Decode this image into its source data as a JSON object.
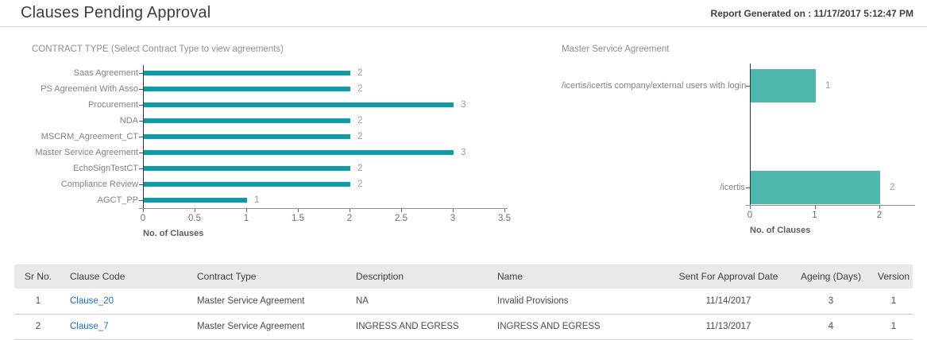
{
  "header": {
    "title": "Clauses Pending Approval",
    "generated": "Report Generated on : 11/17/2017 5:12:47 PM"
  },
  "chart_data": [
    {
      "type": "bar",
      "orientation": "horizontal",
      "title": "CONTRACT TYPE (Select Contract Type to view agreements)",
      "categories": [
        "Saas Agreement",
        "PS Agreement With Asso",
        "Procurement",
        "NDA",
        "MSCRM_Agreement_CT",
        "Master Service Agreement",
        "EchoSignTestCT",
        "Compliance Review",
        "AGCT_PP"
      ],
      "values": [
        2,
        2,
        3,
        2,
        2,
        3,
        2,
        2,
        1
      ],
      "xlabel": "No. of Clauses",
      "xlim": [
        0,
        3.5
      ],
      "xticks": [
        "0",
        "0.5",
        "1",
        "1.5",
        "2",
        "2.5",
        "3",
        "3.5"
      ],
      "bar_color": "#0d9aaa",
      "grid": false,
      "legend": "none"
    },
    {
      "type": "bar",
      "orientation": "horizontal",
      "title": "Master Service Agreement",
      "categories": [
        "/icertis/icertis company/external users with login",
        "/icertis"
      ],
      "values": [
        1,
        2
      ],
      "xlabel": "No. of Clauses",
      "xlim": [
        0,
        2.55
      ],
      "xticks": [
        "0",
        "1",
        "2"
      ],
      "bar_color": "#4db8ab",
      "grid": false,
      "legend": "none"
    }
  ],
  "table": {
    "columns": [
      "Sr No.",
      "Clause Code",
      "Contract Type",
      "Description",
      "Name",
      "Sent For Approval Date",
      "Ageing  (Days)",
      "Version"
    ],
    "rows": [
      [
        "1",
        "Clause_20",
        "Master Service Agreement",
        "NA",
        "Invalid Provisions",
        "11/14/2017",
        "3",
        "1"
      ],
      [
        "2",
        "Clause_7",
        "Master Service Agreement",
        "INGRESS AND EGRESS",
        "INGRESS AND EGRESS",
        "11/13/2017",
        "4",
        "1"
      ]
    ],
    "link_column_index": 1
  },
  "colors": {
    "left_bar": "#0d9aaa",
    "right_bar": "#4db8ab",
    "link": "#2270b8",
    "table_header_bg": "#e9e9e9"
  }
}
